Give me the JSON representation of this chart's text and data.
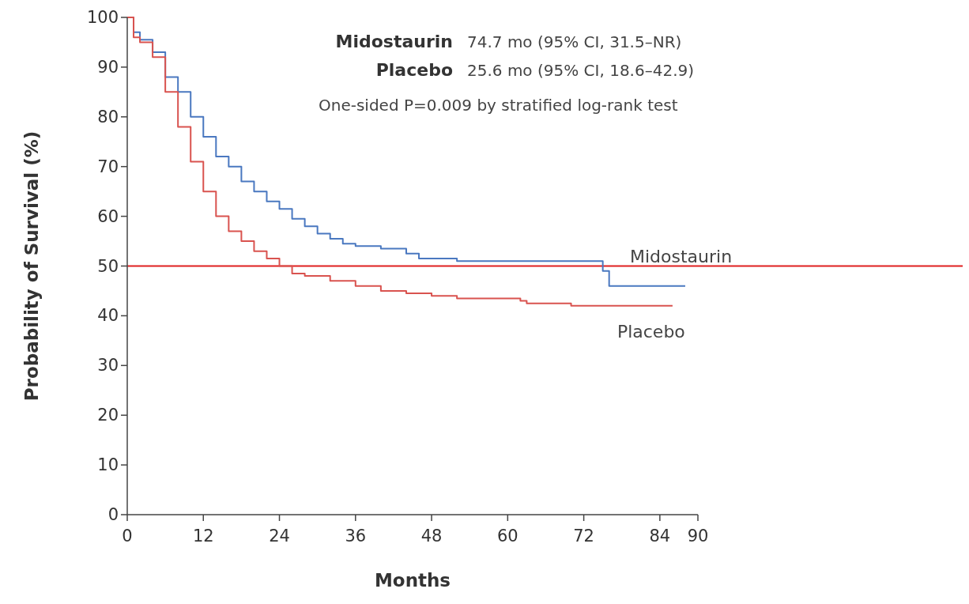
{
  "chart_data": {
    "type": "step",
    "xlabel": "Months",
    "ylabel": "Probability of Survival (%)",
    "xlim": [
      0,
      90
    ],
    "xticks": [
      0,
      12,
      24,
      36,
      48,
      60,
      72,
      84,
      90
    ],
    "ylim": [
      0,
      100
    ],
    "yticks": [
      0,
      10,
      20,
      30,
      40,
      50,
      60,
      70,
      80,
      90,
      100
    ],
    "series": [
      {
        "name": "Midostaurin",
        "color": "#4a78c0",
        "x": [
          0,
          1,
          2,
          4,
          6,
          8,
          10,
          12,
          14,
          16,
          18,
          20,
          22,
          24,
          26,
          28,
          30,
          32,
          34,
          36,
          40,
          44,
          46,
          52,
          75,
          76,
          88
        ],
        "values": [
          100,
          97,
          95.5,
          93,
          88,
          85,
          80,
          76,
          72,
          70,
          67,
          65,
          63,
          61.5,
          59.5,
          58,
          56.5,
          55.5,
          54.5,
          54,
          53.5,
          52.5,
          51.5,
          51,
          49,
          46,
          46
        ]
      },
      {
        "name": "Placebo",
        "color": "#d9534f",
        "x": [
          0,
          1,
          2,
          4,
          6,
          8,
          10,
          12,
          14,
          16,
          18,
          20,
          22,
          24,
          26,
          28,
          32,
          36,
          40,
          44,
          48,
          52,
          62,
          63,
          70,
          86
        ],
        "values": [
          100,
          96,
          95,
          92,
          85,
          78,
          71,
          65,
          60,
          57,
          55,
          53,
          51.5,
          50,
          48.5,
          48,
          47,
          46,
          45,
          44.5,
          44,
          43.5,
          43,
          42.5,
          42,
          42
        ]
      }
    ],
    "ref_lines": [
      {
        "axis": "y",
        "value": 50,
        "color": "#e02020"
      }
    ],
    "annotations": [
      "Midostaurin 74.7 mo (95% CI, 31.5–NR)",
      "Placebo 25.6 mo (95% CI, 18.6–42.9)",
      "One-sided P=0.009 by stratified log-rank test"
    ]
  }
}
